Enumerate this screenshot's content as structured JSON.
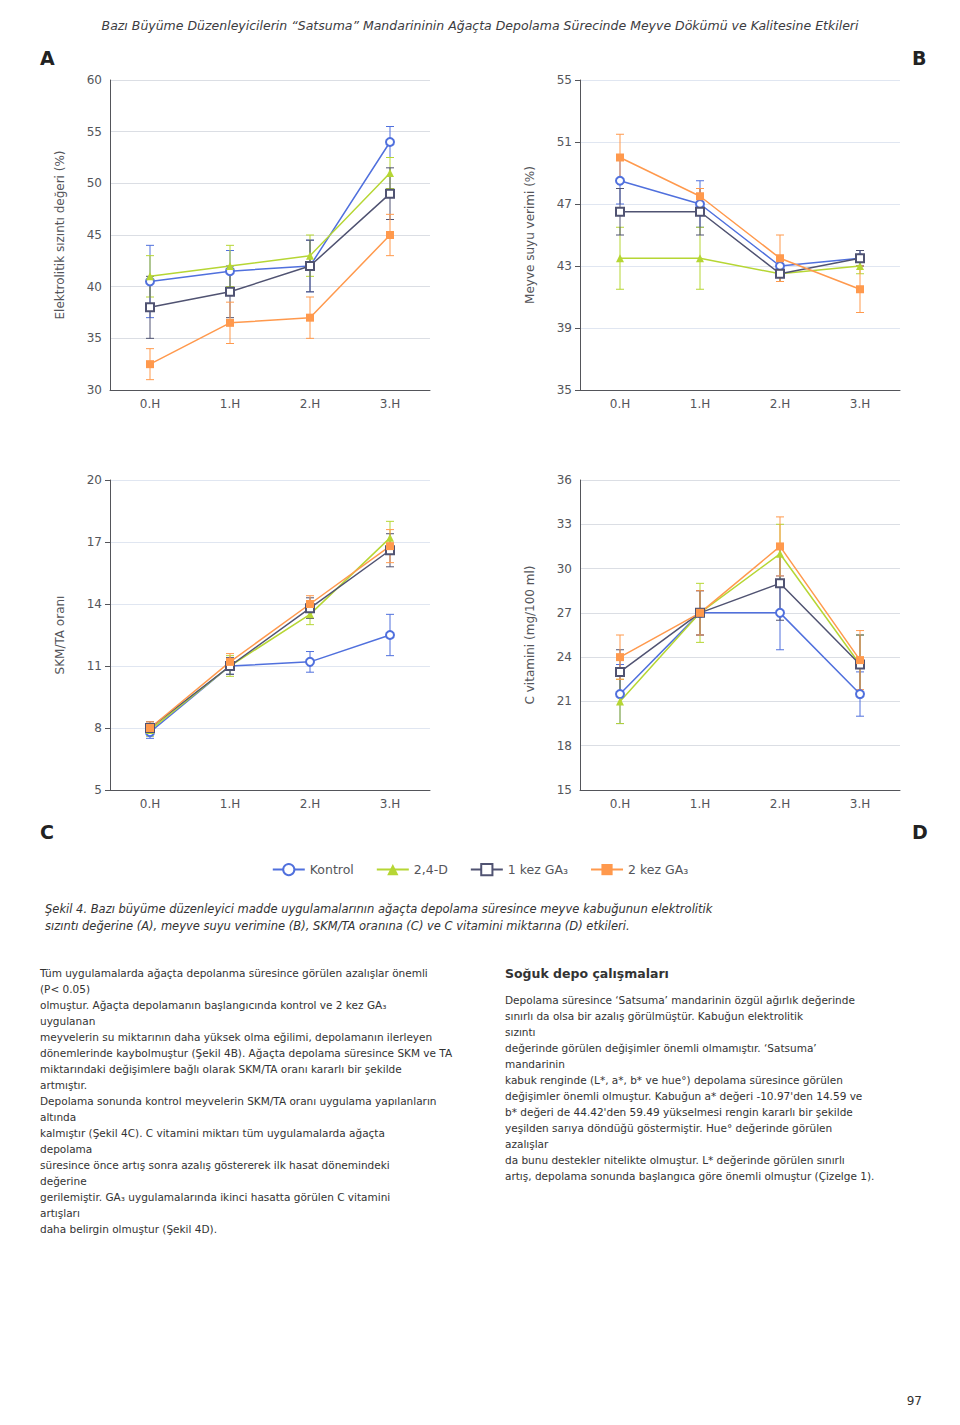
{
  "title": "Bazı Büyüme Düzenleyicilerin “Satsuma” Mandarininin Ağaçta Depolama Sürecinde Meyve Dökümü ve Kalitesine Etkileri",
  "legend": "bottom",
  "annotations": [
    "Şekil 4. Bazı büyüme düzenleyici madde uygulamalarının ağaçta depolama süresince meyve kabuğunun elektrolitik sızıntı değerine (A), meyve suyu verimine (B), SKM/TA oranına (C) ve C vitamini miktarına (D) etkileri.",
    "Tüm uygulamalarda ağaçta depolanma süresince görülen azalışlar önemli (P< 0.05)\nolmuştur. Ağaçta depolamanın başlangıcında kontrol ve 2 kez GA₃ uygulanan\nmeyvelerin su miktarının daha yüksek olma eğilimi, depolamanın ilerleyen\ndönemlerinde kaybolmuştur (Şekil 4B). Ağaçta depolama süresince SKM ve TA\nmiktarındaki değişimlere bağlı olarak SKM/TA oranı kararlı bir şekilde artmıştır.\nDepolama sonunda kontrol meyvelerin SKM/TA oranı uygulama yapılanların altında\nkalmıştır (Şekil 4C). C vitamini miktarı tüm uygulamalarda ağaçta depolama\nsüresince önce artış sonra azalış göstererek ilk hasat dönemindeki değerine\ngerilemiştir. GA₃ uygulamalarında ikinci hasatta görülen C vitamini artışları\ndaha belirgin olmuştur (Şekil 4D).",
    "Soğuk depo çalışmaları",
    "Depolama süresince ‘Satsuma’ mandarinin özgül ağırlık değerinde\nsınırlı da olsa bir azalış görülmüştür. Kabuğun elektrolitik sızıntı\ndeğerinde görülen değişimler önemli olmamıştır. ‘Satsuma’ mandarinin\nkabuk renginde (L*, a*, b* ve hue°) depolama süresince görülen\ndeğişimler önemli olmuştur. Kabuğun a* değeri -10.97'den 14.59 ve\nb* değeri de 44.42'den 59.49 yükselmesi rengin kararlı bir şekilde\nyeşilden sarıya döndüğü göstermiştir. Hue° değerinde görülen azalışlar\nda bunu destekler nitelikte olmuştur. L* değerinde görülen sınırlı\nartış, depolama sonunda başlangıca göre önemli olmuştur (Çizelge 1).",
    "97"
  ],
  "chart_data": [
    {
      "type": "line",
      "annotations": [
        "A"
      ],
      "categories": [
        "0.H",
        "1.H",
        "2.H",
        "3.H"
      ],
      "ylabel": "Elektrolitik sızıntı değeri (%)",
      "ylim": [
        30,
        60
      ],
      "yticks": [
        30,
        35,
        40,
        45,
        50,
        55,
        60
      ],
      "grid": true,
      "series": [
        {
          "name": "Kontrol",
          "marker": "circle-open",
          "values": [
            40.5,
            41.5,
            42.0,
            54.0
          ],
          "errors": [
            3.5,
            2.0,
            2.5,
            1.5
          ]
        },
        {
          "name": "2,4-D",
          "marker": "triangle",
          "values": [
            41.0,
            42.0,
            43.0,
            51.0
          ],
          "errors": [
            2.0,
            2.0,
            2.0,
            1.5
          ]
        },
        {
          "name": "1 kez GA₃",
          "marker": "square-open",
          "values": [
            38.0,
            39.5,
            42.0,
            49.0
          ],
          "errors": [
            3.0,
            2.5,
            2.5,
            2.5
          ]
        },
        {
          "name": "2 kez GA₃",
          "marker": "square",
          "values": [
            32.5,
            36.5,
            37.0,
            45.0
          ],
          "errors": [
            1.5,
            2.0,
            2.0,
            2.0
          ]
        }
      ]
    },
    {
      "type": "line",
      "annotations": [
        "B"
      ],
      "categories": [
        "0.H",
        "1.H",
        "2.H",
        "3.H"
      ],
      "ylabel": "Meyve suyu verimi (%)",
      "ylim": [
        35,
        55
      ],
      "yticks": [
        35,
        39,
        43,
        47,
        51,
        55
      ],
      "grid": true,
      "series": [
        {
          "name": "Kontrol",
          "marker": "circle-open",
          "values": [
            48.5,
            47.0,
            43.0,
            43.5
          ],
          "errors": [
            1.5,
            1.5,
            0.5,
            0.5
          ]
        },
        {
          "name": "2,4-D",
          "marker": "triangle",
          "values": [
            43.5,
            43.5,
            42.5,
            43.0
          ],
          "errors": [
            2.0,
            2.0,
            0.5,
            0.5
          ]
        },
        {
          "name": "1 kez GA₃",
          "marker": "square-open",
          "values": [
            46.5,
            46.5,
            42.5,
            43.5
          ],
          "errors": [
            1.5,
            1.5,
            0.5,
            0.5
          ]
        },
        {
          "name": "2 kez GA₃",
          "marker": "square",
          "values": [
            50.0,
            47.5,
            43.5,
            41.5
          ],
          "errors": [
            1.5,
            0.5,
            1.5,
            1.5
          ]
        }
      ]
    },
    {
      "type": "line",
      "annotations": [
        "C"
      ],
      "categories": [
        "0.H",
        "1.H",
        "2.H",
        "3.H"
      ],
      "ylabel": "SKM/TA oranı",
      "ylim": [
        5,
        20
      ],
      "yticks": [
        5,
        8,
        11,
        14,
        17,
        20
      ],
      "grid": true,
      "series": [
        {
          "name": "Kontrol",
          "marker": "circle-open",
          "values": [
            7.8,
            11.0,
            11.2,
            12.5
          ],
          "errors": [
            0.3,
            0.4,
            0.5,
            1.0
          ]
        },
        {
          "name": "2,4-D",
          "marker": "triangle",
          "values": [
            7.9,
            11.0,
            13.5,
            17.2
          ],
          "errors": [
            0.3,
            0.5,
            0.5,
            0.8
          ]
        },
        {
          "name": "1 kez GA₃",
          "marker": "square-open",
          "values": [
            8.0,
            11.0,
            13.8,
            16.6
          ],
          "errors": [
            0.3,
            0.4,
            0.5,
            0.8
          ]
        },
        {
          "name": "2 kez GA₃",
          "marker": "square",
          "values": [
            8.0,
            11.2,
            14.0,
            16.8
          ],
          "errors": [
            0.3,
            0.4,
            0.4,
            0.8
          ]
        }
      ]
    },
    {
      "type": "line",
      "annotations": [
        "D"
      ],
      "categories": [
        "0.H",
        "1.H",
        "2.H",
        "3.H"
      ],
      "ylabel": "C vitamini (mg/100 ml)",
      "ylim": [
        15,
        36
      ],
      "yticks": [
        15,
        18,
        21,
        24,
        27,
        30,
        33,
        36
      ],
      "grid": true,
      "series": [
        {
          "name": "Kontrol",
          "marker": "circle-open",
          "values": [
            21.5,
            27.0,
            27.0,
            21.5
          ],
          "errors": [
            2.0,
            1.5,
            2.5,
            1.5
          ]
        },
        {
          "name": "2,4-D",
          "marker": "triangle",
          "values": [
            21.0,
            27.0,
            31.0,
            23.5
          ],
          "errors": [
            1.5,
            2.0,
            2.0,
            2.0
          ]
        },
        {
          "name": "1 kez GA₃",
          "marker": "square-open",
          "values": [
            23.0,
            27.0,
            29.0,
            23.5
          ],
          "errors": [
            1.5,
            1.5,
            2.5,
            2.0
          ]
        },
        {
          "name": "2 kez GA₃",
          "marker": "square",
          "values": [
            24.0,
            27.0,
            31.5,
            23.8
          ],
          "errors": [
            1.5,
            1.5,
            2.0,
            2.0
          ]
        }
      ]
    }
  ]
}
